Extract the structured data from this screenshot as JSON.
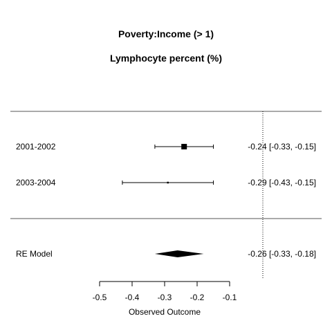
{
  "chart_data": {
    "type": "forest",
    "title": "Poverty:Income (> 1)",
    "subtitle": "Lymphocyte percent (%)",
    "xlabel": "Observed Outcome",
    "xlim": [
      -0.5,
      -0.1
    ],
    "x_ticks": [
      "-0.5",
      "-0.4",
      "-0.3",
      "-0.2",
      "-0.1"
    ],
    "reference_line": 0,
    "studies": [
      {
        "label": "2001-2002",
        "estimate": -0.24,
        "ci_low": -0.33,
        "ci_high": -0.15,
        "text": "-0.24 [-0.33, -0.15]",
        "weight": "large"
      },
      {
        "label": "2003-2004",
        "estimate": -0.29,
        "ci_low": -0.43,
        "ci_high": -0.15,
        "text": "-0.29 [-0.43, -0.15]",
        "weight": "small"
      }
    ],
    "summary": {
      "label": "RE Model",
      "estimate": -0.26,
      "ci_low": -0.33,
      "ci_high": -0.18,
      "text": "-0.26 [-0.33, -0.18]"
    }
  }
}
